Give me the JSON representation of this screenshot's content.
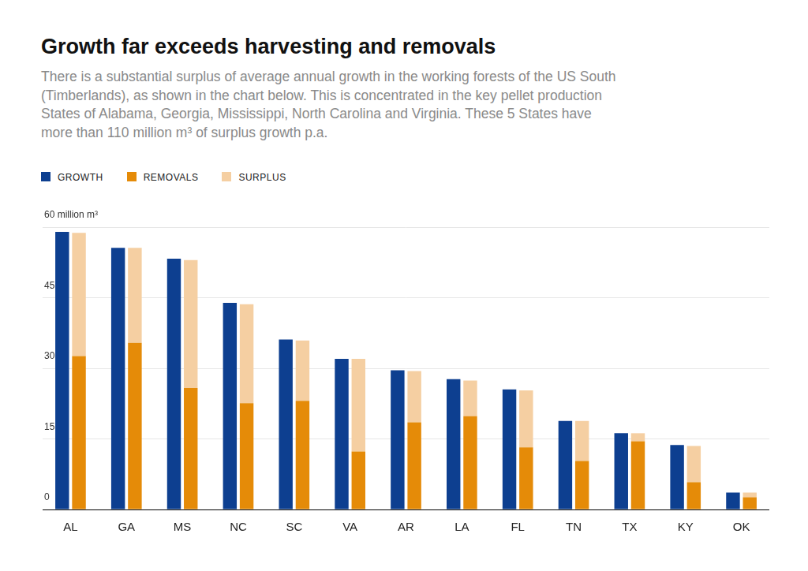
{
  "chart_data": {
    "type": "bar",
    "title": "Growth far exceeds harvesting and removals",
    "subtitle": "There is a substantial surplus of average annual growth in the working forests of the US South (Timberlands), as shown in the chart below. This is concentrated in the key pellet production States of Alabama, Georgia, Mississippi, North Carolina and Virginia. These 5 States have more than 110 million m³ of surplus growth p.a.",
    "categories": [
      "AL",
      "GA",
      "MS",
      "NC",
      "SC",
      "VA",
      "AR",
      "LA",
      "FL",
      "TN",
      "TX",
      "KY",
      "OK"
    ],
    "series": [
      {
        "name": "GROWTH",
        "color": "#0d3f90",
        "values": [
          59.0,
          55.6,
          53.3,
          43.9,
          36.1,
          32.0,
          29.6,
          27.7,
          25.5,
          18.8,
          16.2,
          13.7,
          3.6
        ]
      },
      {
        "name": "REMOVALS",
        "color": "#e58b08",
        "stacked": true,
        "values": [
          32.6,
          35.4,
          25.8,
          22.6,
          23.1,
          12.3,
          18.5,
          19.8,
          13.2,
          10.3,
          14.5,
          5.8,
          2.6
        ]
      },
      {
        "name": "SURPLUS",
        "color": "#f5cfa2",
        "stacked": true,
        "values": [
          26.2,
          20.2,
          27.2,
          21.0,
          12.8,
          19.7,
          10.9,
          7.6,
          12.1,
          8.5,
          1.7,
          7.7,
          1.0
        ]
      }
    ],
    "ylim": [
      0,
      60
    ],
    "yticks": [
      0,
      15,
      30,
      45,
      {
        "value": 60,
        "label": "60 million m³"
      }
    ],
    "grid": true,
    "legend": "top-left"
  }
}
